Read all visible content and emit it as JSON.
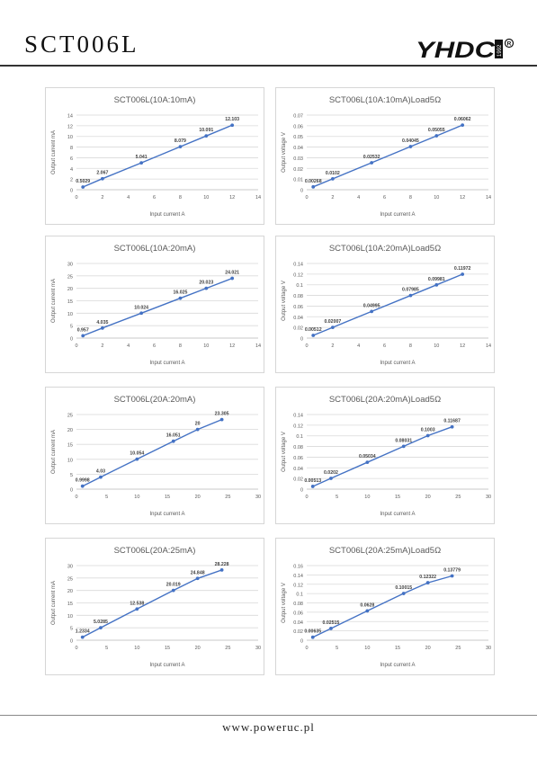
{
  "header": {
    "title": "SCT006L",
    "logo_text": "YHDC",
    "logo_side": "1992",
    "logo_mark": "R"
  },
  "footer": {
    "url": "www.poweruc.pl"
  },
  "colors": {
    "series": "#4472C4",
    "grid": "#d9d9d9",
    "text": "#595959"
  },
  "chart_data": [
    {
      "type": "line",
      "title": "SCT006L(10A:10mA)",
      "xlabel": "Input current A",
      "ylabel": "Output current mA",
      "xlim": [
        0,
        14
      ],
      "xticks": [
        0,
        2,
        4,
        6,
        8,
        10,
        12,
        14
      ],
      "ylim": [
        0,
        14
      ],
      "yticks": [
        0,
        2,
        4,
        6,
        8,
        10,
        12,
        14
      ],
      "x": [
        0.5,
        2,
        5,
        8,
        10,
        12
      ],
      "y": [
        0.5029,
        2.067,
        5.041,
        8.079,
        10.091,
        12.103
      ],
      "labels": [
        "0.5029",
        "2.067",
        "5.041",
        "8.079",
        "10.091",
        "12.103"
      ],
      "grid": true,
      "legend": false
    },
    {
      "type": "line",
      "title": "SCT006L(10A:10mA)Load5Ω",
      "xlabel": "Input current A",
      "ylabel": "Output voltage V",
      "xlim": [
        0,
        14
      ],
      "xticks": [
        0,
        2,
        4,
        6,
        8,
        10,
        12,
        14
      ],
      "ylim": [
        0,
        0.07
      ],
      "yticks": [
        0,
        0.01,
        0.02,
        0.03,
        0.04,
        0.05,
        0.06,
        0.07
      ],
      "x": [
        0.5,
        2,
        5,
        8,
        10,
        12
      ],
      "y": [
        0.00268,
        0.0102,
        0.02532,
        0.04045,
        0.05055,
        0.06062
      ],
      "labels": [
        "0.00268",
        "0.0102",
        "0.02532",
        "0.04045",
        "0.05055",
        "0.06062"
      ],
      "grid": true,
      "legend": false
    },
    {
      "type": "line",
      "title": "SCT006L(10A:20mA)",
      "xlabel": "Input current A",
      "ylabel": "Output current mA",
      "xlim": [
        0,
        14
      ],
      "xticks": [
        0,
        2,
        4,
        6,
        8,
        10,
        12,
        14
      ],
      "ylim": [
        0,
        30
      ],
      "yticks": [
        0,
        5,
        10,
        15,
        20,
        25,
        30
      ],
      "x": [
        0.5,
        2,
        5,
        8,
        10,
        12
      ],
      "y": [
        0.957,
        4.035,
        10.024,
        16.025,
        20.023,
        24.021
      ],
      "labels": [
        "0.957",
        "4.035",
        "10.024",
        "16.025",
        "20.023",
        "24.021"
      ],
      "grid": true,
      "legend": false
    },
    {
      "type": "line",
      "title": "SCT006L(10A:20mA)Load5Ω",
      "xlabel": "Input current A",
      "ylabel": "Output voltage V",
      "xlim": [
        0,
        14
      ],
      "xticks": [
        0,
        2,
        4,
        6,
        8,
        10,
        12,
        14
      ],
      "ylim": [
        0,
        0.14
      ],
      "yticks": [
        0,
        0.02,
        0.04,
        0.06,
        0.08,
        0.1,
        0.12,
        0.14
      ],
      "x": [
        0.5,
        2,
        5,
        8,
        10,
        12
      ],
      "y": [
        0.00512,
        0.02007,
        0.04995,
        0.07985,
        0.09981,
        0.11972
      ],
      "labels": [
        "0.00512",
        "0.02007",
        "0.04995",
        "0.07985",
        "0.09981",
        "0.11972"
      ],
      "grid": true,
      "legend": false
    },
    {
      "type": "line",
      "title": "SCT006L(20A:20mA)",
      "xlabel": "Input current A",
      "ylabel": "Output current mA",
      "xlim": [
        0,
        30
      ],
      "xticks": [
        0,
        5,
        10,
        15,
        20,
        25,
        30
      ],
      "ylim": [
        0,
        25
      ],
      "yticks": [
        0,
        5,
        10,
        15,
        20,
        25
      ],
      "x": [
        1,
        4,
        10,
        16,
        20,
        24
      ],
      "y": [
        0.9998,
        4.03,
        10.054,
        16.051,
        20,
        23.305
      ],
      "labels": [
        "0.9998",
        "4.03",
        "10.054",
        "16.051",
        "20",
        "23.305"
      ],
      "grid": true,
      "legend": false
    },
    {
      "type": "line",
      "title": "SCT006L(20A:20mA)Load5Ω",
      "xlabel": "Input current A",
      "ylabel": "Output voltage V",
      "xlim": [
        0,
        30
      ],
      "xticks": [
        0,
        5,
        10,
        15,
        20,
        25,
        30
      ],
      "ylim": [
        0,
        0.14
      ],
      "yticks": [
        0,
        0.02,
        0.04,
        0.06,
        0.08,
        0.1,
        0.12,
        0.14
      ],
      "x": [
        1,
        4,
        10,
        16,
        20,
        24
      ],
      "y": [
        0.00513,
        0.0202,
        0.05034,
        0.08031,
        0.1003,
        0.11687
      ],
      "labels": [
        "0.00513",
        "0.0202",
        "0.05034",
        "0.08031",
        "0.1003",
        "0.11687"
      ],
      "grid": true,
      "legend": false
    },
    {
      "type": "line",
      "title": "SCT006L(20A:25mA)",
      "xlabel": "Input current A",
      "ylabel": "Output current mA",
      "xlim": [
        0,
        30
      ],
      "xticks": [
        0,
        5,
        10,
        15,
        20,
        25,
        30
      ],
      "ylim": [
        0,
        30
      ],
      "yticks": [
        0,
        5,
        10,
        15,
        20,
        25,
        30
      ],
      "x": [
        1,
        4,
        10,
        16,
        20,
        24
      ],
      "y": [
        1.2334,
        5.0285,
        12.538,
        20.019,
        24.848,
        28.228
      ],
      "labels": [
        "1.2334",
        "5.0285",
        "12.538",
        "20.019",
        "24.848",
        "28.228"
      ],
      "grid": true,
      "legend": false
    },
    {
      "type": "line",
      "title": "SCT006L(20A:25mA)Load5Ω",
      "xlabel": "Input current A",
      "ylabel": "Output voltage V",
      "xlim": [
        0,
        30
      ],
      "xticks": [
        0,
        5,
        10,
        15,
        20,
        25,
        30
      ],
      "ylim": [
        0,
        0.16
      ],
      "yticks": [
        0,
        0.02,
        0.04,
        0.06,
        0.08,
        0.1,
        0.12,
        0.14,
        0.16
      ],
      "x": [
        1,
        4,
        10,
        16,
        20,
        24
      ],
      "y": [
        0.00635,
        0.02515,
        0.0628,
        0.10015,
        0.12322,
        0.13779
      ],
      "labels": [
        "0.00635",
        "0.02515",
        "0.0628",
        "0.10015",
        "0.12322",
        "0.13779"
      ],
      "grid": true,
      "legend": false
    }
  ]
}
